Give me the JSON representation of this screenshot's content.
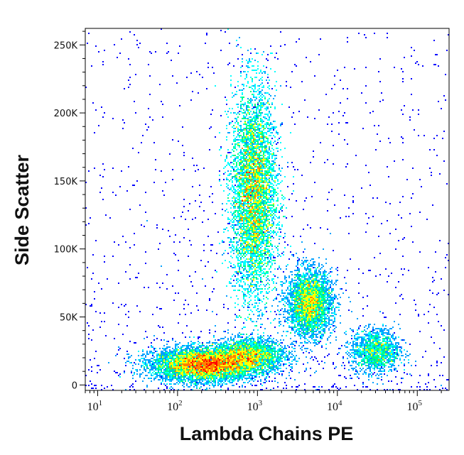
{
  "chart_data": {
    "type": "density-scatter",
    "xlabel": "Lambda Chains PE",
    "ylabel": "Side Scatter",
    "x_scale": "log",
    "xlim": [
      7,
      250000
    ],
    "ylim": [
      -4000,
      262144
    ],
    "x_ticks": [
      {
        "value": 10,
        "base": "10",
        "exp": "1"
      },
      {
        "value": 100,
        "base": "10",
        "exp": "2"
      },
      {
        "value": 1000,
        "base": "10",
        "exp": "3"
      },
      {
        "value": 10000,
        "base": "10",
        "exp": "4"
      },
      {
        "value": 100000,
        "base": "10",
        "exp": "5"
      }
    ],
    "y_ticks": [
      {
        "value": 0,
        "label": "0"
      },
      {
        "value": 50000,
        "label": "50K"
      },
      {
        "value": 100000,
        "label": "100K"
      },
      {
        "value": 150000,
        "label": "150K"
      },
      {
        "value": 200000,
        "label": "200K"
      },
      {
        "value": 250000,
        "label": "250K"
      }
    ],
    "grid": false,
    "colormap": [
      "#0000ff",
      "#00a0ff",
      "#00ffff",
      "#00ff80",
      "#ffff00",
      "#ff8000",
      "#ff0000"
    ],
    "populations": [
      {
        "x_center": 220,
        "y_center": 15000,
        "x_spread_decades": 0.32,
        "y_spread": 6000,
        "count": 7000
      },
      {
        "x_center": 800,
        "y_center": 22000,
        "x_spread_decades": 0.22,
        "y_spread": 6000,
        "count": 2500
      },
      {
        "x_center": 900,
        "y_center": 140000,
        "x_spread_decades": 0.14,
        "y_spread": 38000,
        "count": 9000
      },
      {
        "x_center": 4500,
        "y_center": 60000,
        "x_spread_decades": 0.14,
        "y_spread": 12000,
        "count": 3500
      },
      {
        "x_center": 30000,
        "y_center": 25000,
        "x_spread_decades": 0.15,
        "y_spread": 8000,
        "count": 1500
      }
    ]
  }
}
